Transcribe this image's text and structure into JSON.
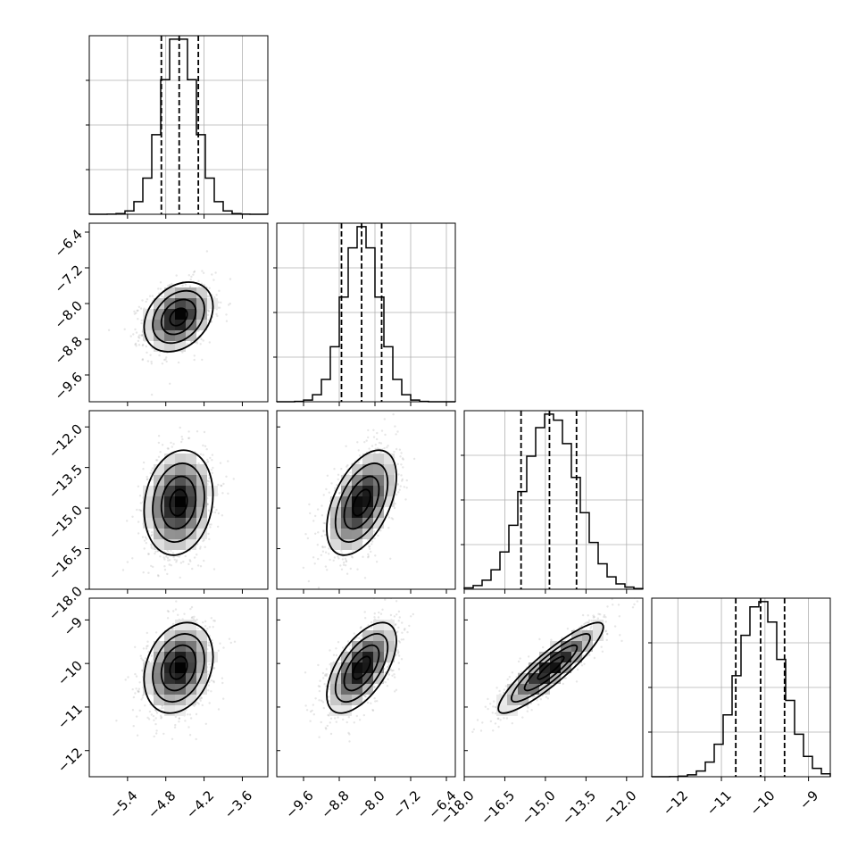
{
  "chart_data": {
    "type": "corner",
    "n_params": 4,
    "params": [
      {
        "range": [
          -6.0,
          -3.2
        ],
        "mean": -4.6,
        "sd": 0.27,
        "quantiles": [
          -4.87,
          -4.59,
          -4.29
        ],
        "ticks": [
          -5.4,
          -4.8,
          -4.2,
          -3.6
        ],
        "tick_labels": [
          "−5.4",
          "−4.8",
          "−4.2",
          "−3.6"
        ]
      },
      {
        "range": [
          -10.2,
          -6.2
        ],
        "mean": -8.3,
        "sd": 0.39,
        "quantiles": [
          -8.75,
          -8.3,
          -7.85
        ],
        "ticks": [
          -9.6,
          -8.8,
          -8.0,
          -7.2,
          -6.4
        ],
        "tick_labels": [
          "−9.6",
          "−8.8",
          "−8.0",
          "−7.2",
          "−6.4"
        ]
      },
      {
        "range": [
          -18.0,
          -11.4
        ],
        "mean": -14.8,
        "sd": 0.97,
        "quantiles": [
          -15.9,
          -14.85,
          -13.85
        ],
        "ticks": [
          -18.0,
          -16.5,
          -15.0,
          -13.5,
          -12.0
        ],
        "tick_labels": [
          "−18.0",
          "−16.5",
          "−15.0",
          "−13.5",
          "−12.0"
        ]
      },
      {
        "range": [
          -12.6,
          -8.5
        ],
        "mean": -10.1,
        "sd": 0.52,
        "quantiles": [
          -10.67,
          -10.1,
          -9.55
        ],
        "ticks": [
          -12,
          -11,
          -10,
          -9
        ],
        "tick_labels": [
          "−12",
          "−11",
          "−10",
          "−9"
        ]
      }
    ],
    "correlations": [
      [
        1.0,
        0.3,
        0.15,
        0.25
      ],
      [
        0.3,
        1.0,
        0.5,
        0.6
      ],
      [
        0.15,
        0.5,
        1.0,
        0.9
      ],
      [
        0.25,
        0.6,
        0.9,
        1.0
      ]
    ],
    "hist_bins": 20,
    "hist_grid_fractions": [
      0.25,
      0.5,
      0.75
    ],
    "contour_levels_sigma": [
      0.5,
      1.0,
      1.5,
      2.0
    ],
    "n_scatter_points": 1100,
    "colors": {
      "frame": "#000000",
      "grid": "#b0b0b0",
      "scatter": "#8c8c8c",
      "density": "#000000"
    }
  }
}
